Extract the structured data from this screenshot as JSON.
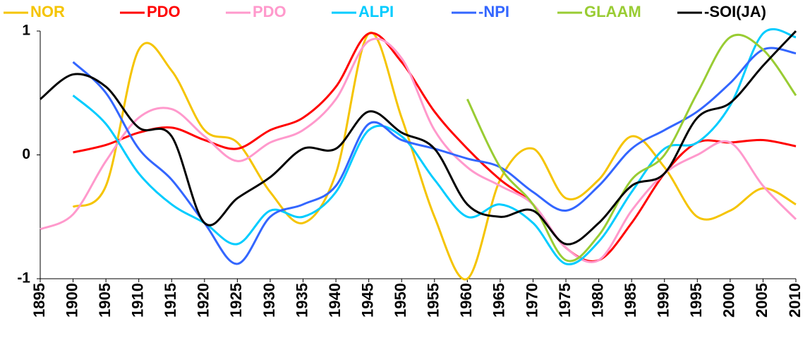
{
  "chart_data": {
    "type": "line",
    "x": [
      1895,
      1900,
      1905,
      1910,
      1915,
      1920,
      1925,
      1930,
      1935,
      1940,
      1945,
      1950,
      1955,
      1960,
      1965,
      1970,
      1975,
      1980,
      1985,
      1990,
      1995,
      2000,
      2005,
      2010
    ],
    "series": [
      {
        "name": "NOR",
        "color": "#f5c400",
        "values": [
          null,
          -0.42,
          -0.25,
          0.85,
          0.68,
          0.2,
          0.1,
          -0.3,
          -0.55,
          -0.15,
          0.98,
          0.3,
          -0.5,
          -1.0,
          -0.2,
          0.05,
          -0.35,
          -0.2,
          0.15,
          -0.1,
          -0.5,
          -0.45,
          -0.27,
          -0.4
        ]
      },
      {
        "name": "PDO",
        "color": "#ff0000",
        "values": [
          null,
          0.02,
          0.08,
          0.18,
          0.22,
          0.12,
          0.05,
          0.2,
          0.3,
          0.55,
          0.98,
          0.75,
          0.35,
          0.05,
          -0.2,
          -0.4,
          -0.75,
          -0.85,
          -0.55,
          -0.15,
          0.1,
          0.1,
          0.12,
          0.07
        ]
      },
      {
        "name": "PDO",
        "color": "#ff99cc",
        "values": [
          -0.6,
          -0.48,
          -0.05,
          0.3,
          0.37,
          0.15,
          -0.05,
          0.1,
          0.2,
          0.45,
          0.92,
          0.78,
          0.2,
          -0.1,
          -0.25,
          -0.4,
          -0.75,
          -0.85,
          -0.45,
          -0.15,
          0.0,
          0.1,
          -0.25,
          -0.52
        ]
      },
      {
        "name": "ALPI",
        "color": "#00ccff",
        "values": [
          null,
          0.48,
          0.25,
          -0.15,
          -0.4,
          -0.55,
          -0.72,
          -0.45,
          -0.5,
          -0.3,
          0.2,
          0.15,
          -0.2,
          -0.5,
          -0.4,
          -0.55,
          -0.88,
          -0.7,
          -0.3,
          0.05,
          0.1,
          0.4,
          0.98,
          0.95
        ]
      },
      {
        "name": "-NPI",
        "color": "#3366ff",
        "values": [
          null,
          0.75,
          0.5,
          0.05,
          -0.2,
          -0.55,
          -0.88,
          -0.5,
          -0.4,
          -0.25,
          0.25,
          0.12,
          0.05,
          -0.03,
          -0.1,
          -0.3,
          -0.45,
          -0.25,
          0.05,
          0.2,
          0.35,
          0.58,
          0.85,
          0.82
        ]
      },
      {
        "name": "GLAAM",
        "color": "#99cc33",
        "values": [
          null,
          null,
          null,
          null,
          null,
          null,
          null,
          null,
          null,
          null,
          null,
          null,
          null,
          0.45,
          -0.1,
          -0.4,
          -0.85,
          -0.65,
          -0.2,
          0.0,
          0.5,
          0.95,
          0.85,
          0.48
        ]
      },
      {
        "name": "-SOI(JA)",
        "color": "#000000",
        "values": [
          0.45,
          0.65,
          0.55,
          0.22,
          0.15,
          -0.55,
          -0.35,
          -0.18,
          0.05,
          0.05,
          0.35,
          0.18,
          0.05,
          -0.4,
          -0.5,
          -0.45,
          -0.72,
          -0.55,
          -0.25,
          -0.15,
          0.3,
          0.42,
          0.72,
          1.0
        ]
      }
    ],
    "xlim": [
      1895,
      2010
    ],
    "xticks": [
      1895,
      1900,
      1905,
      1910,
      1915,
      1920,
      1925,
      1930,
      1935,
      1940,
      1945,
      1950,
      1955,
      1960,
      1965,
      1970,
      1975,
      1980,
      1985,
      1990,
      1995,
      2000,
      2005,
      2010
    ],
    "ylim": [
      -1,
      1
    ],
    "yticks": [
      -1,
      0,
      1
    ],
    "grid": false,
    "legend": "top"
  }
}
